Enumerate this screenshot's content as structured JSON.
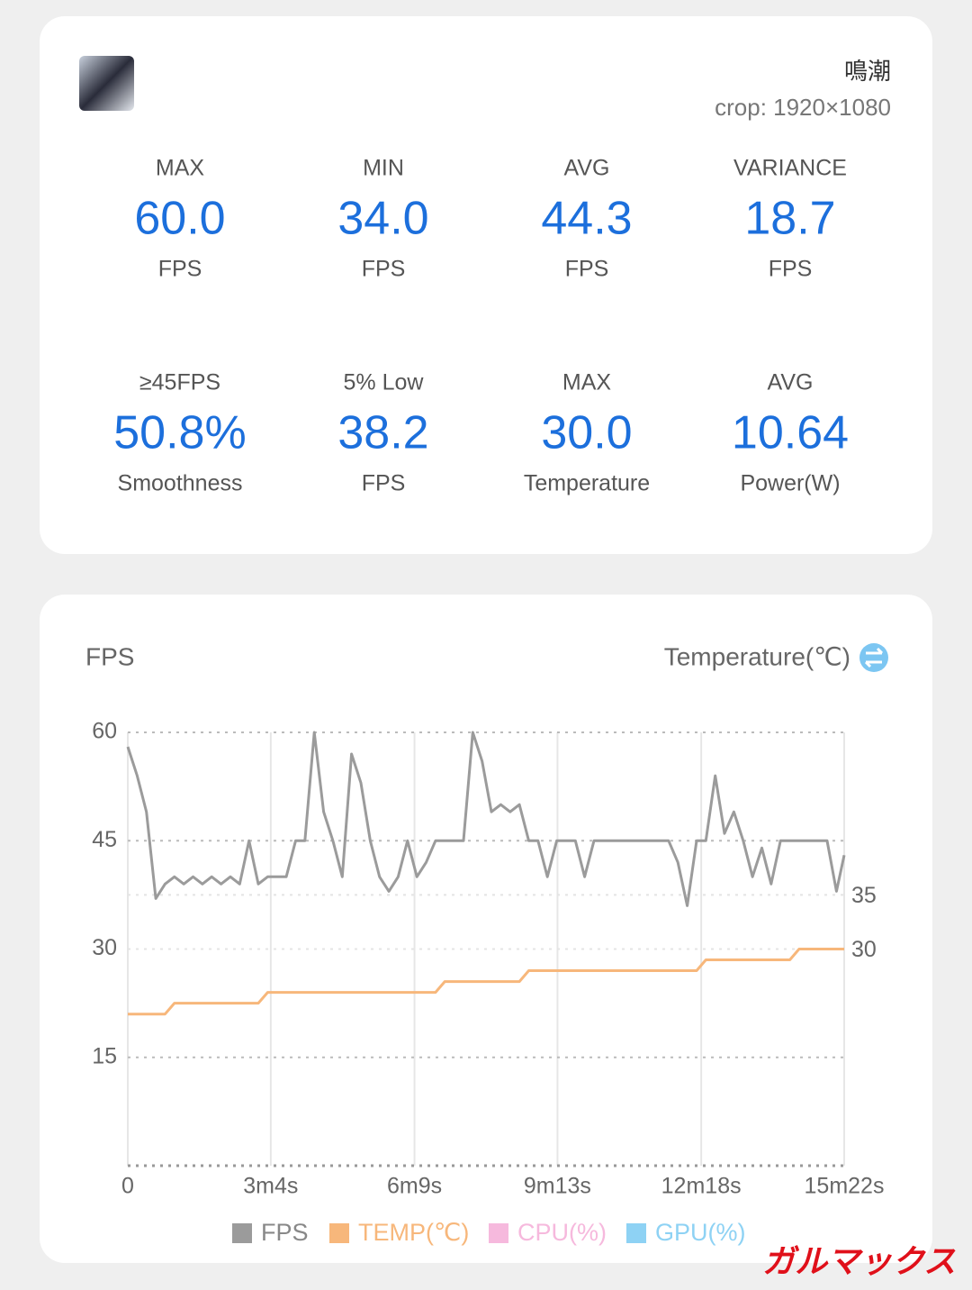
{
  "header": {
    "game_name": "鳴潮",
    "resolution": "crop: 1920×1080"
  },
  "stats": [
    {
      "label": "MAX",
      "value": "60.0",
      "unit": "FPS"
    },
    {
      "label": "MIN",
      "value": "34.0",
      "unit": "FPS"
    },
    {
      "label": "AVG",
      "value": "44.3",
      "unit": "FPS"
    },
    {
      "label": "VARIANCE",
      "value": "18.7",
      "unit": "FPS"
    },
    {
      "label": "≥45FPS",
      "value": "50.8%",
      "unit": "Smoothness"
    },
    {
      "label": "5% Low",
      "value": "38.2",
      "unit": "FPS"
    },
    {
      "label": "MAX",
      "value": "30.0",
      "unit": "Temperature"
    },
    {
      "label": "AVG",
      "value": "10.64",
      "unit": "Power(W)"
    }
  ],
  "chart_data": {
    "type": "line",
    "ylabel": "FPS",
    "y2label": "Temperature(℃)",
    "x": [
      0,
      12,
      24,
      36,
      48,
      60,
      72,
      84,
      96,
      108,
      120,
      132,
      144,
      156,
      168,
      180,
      192,
      204,
      216,
      228,
      240,
      252,
      264,
      276,
      288,
      300,
      312,
      324,
      336,
      348,
      360,
      372,
      384,
      396,
      408,
      420,
      432,
      444,
      456,
      468,
      480,
      492,
      504,
      516,
      528,
      540,
      552,
      564,
      576,
      588,
      600,
      612,
      624,
      636,
      648,
      660,
      672,
      684,
      696,
      708,
      720,
      732,
      744,
      756,
      768,
      780,
      792,
      804,
      816,
      828,
      840,
      852,
      864,
      876,
      888,
      900,
      912,
      922
    ],
    "xlim": [
      0,
      922
    ],
    "xticks": [
      0,
      {
        "value": 184,
        "label": "3m4s"
      },
      {
        "value": 369,
        "label": "6m9s"
      },
      {
        "value": 553,
        "label": "9m13s"
      },
      {
        "value": 738,
        "label": "12m18s"
      },
      {
        "value": 922,
        "label": "15m22s"
      }
    ],
    "ylim": [
      0,
      60
    ],
    "yticks": [
      15,
      30,
      45,
      60
    ],
    "y2lim": [
      10,
      50
    ],
    "y2ticks": [
      30,
      35
    ],
    "grid": true,
    "series": [
      {
        "name": "FPS",
        "color": "#9b9b9b",
        "values": [
          58,
          54,
          49,
          37,
          39,
          40,
          39,
          40,
          39,
          40,
          39,
          40,
          39,
          45,
          39,
          40,
          40,
          40,
          45,
          45,
          60,
          49,
          45,
          40,
          57,
          53,
          45,
          40,
          38,
          40,
          45,
          40,
          42,
          45,
          45,
          45,
          45,
          60,
          56,
          49,
          50,
          49,
          50,
          45,
          45,
          40,
          45,
          45,
          45,
          40,
          45,
          45,
          45,
          45,
          45,
          45,
          45,
          45,
          45,
          42,
          36,
          45,
          45,
          54,
          46,
          49,
          45,
          40,
          44,
          39,
          45,
          45,
          45,
          45,
          45,
          45,
          38,
          43
        ]
      },
      {
        "name": "TEMP(℃)",
        "color": "#f7b77b",
        "axis": "y2",
        "values": [
          24,
          24,
          24,
          24,
          24,
          25,
          25,
          25,
          25,
          25,
          25,
          25,
          25,
          25,
          25,
          26,
          26,
          26,
          26,
          26,
          26,
          26,
          26,
          26,
          26,
          26,
          26,
          26,
          26,
          26,
          26,
          26,
          26,
          26,
          27,
          27,
          27,
          27,
          27,
          27,
          27,
          27,
          27,
          28,
          28,
          28,
          28,
          28,
          28,
          28,
          28,
          28,
          28,
          28,
          28,
          28,
          28,
          28,
          28,
          28,
          28,
          28,
          29,
          29,
          29,
          29,
          29,
          29,
          29,
          29,
          29,
          29,
          30,
          30,
          30,
          30,
          30,
          30
        ]
      },
      {
        "name": "CPU(%)",
        "color": "#f6b9dd",
        "values": [
          null,
          null,
          null,
          null,
          null,
          null,
          null,
          null,
          null,
          null,
          null,
          null,
          null,
          null,
          null,
          null,
          null,
          null,
          null,
          null,
          null,
          null,
          null,
          null,
          null,
          null,
          null,
          null,
          null,
          null,
          null,
          null,
          null,
          null,
          null,
          null,
          null,
          null,
          null,
          null,
          null,
          null,
          null,
          null,
          null,
          null,
          null,
          null,
          null,
          null,
          null,
          null,
          null,
          null,
          null,
          null,
          null,
          null,
          null,
          null,
          null,
          null,
          null,
          null,
          null,
          null,
          null,
          null,
          null,
          null,
          null,
          null,
          null,
          null,
          null,
          null,
          null,
          null
        ]
      },
      {
        "name": "GPU(%)",
        "color": "#8ed2f4",
        "values": [
          null,
          null,
          null,
          null,
          null,
          null,
          null,
          null,
          null,
          null,
          null,
          null,
          null,
          null,
          null,
          null,
          null,
          null,
          null,
          null,
          null,
          null,
          null,
          null,
          null,
          null,
          null,
          null,
          null,
          null,
          null,
          null,
          null,
          null,
          null,
          null,
          null,
          null,
          null,
          null,
          null,
          null,
          null,
          null,
          null,
          null,
          null,
          null,
          null,
          null,
          null,
          null,
          null,
          null,
          null,
          null,
          null,
          null,
          null,
          null,
          null,
          null,
          null,
          null,
          null,
          null,
          null,
          null,
          null,
          null,
          null,
          null,
          null,
          null,
          null,
          null,
          null,
          null
        ]
      }
    ]
  },
  "watermark": "ガルマックス"
}
